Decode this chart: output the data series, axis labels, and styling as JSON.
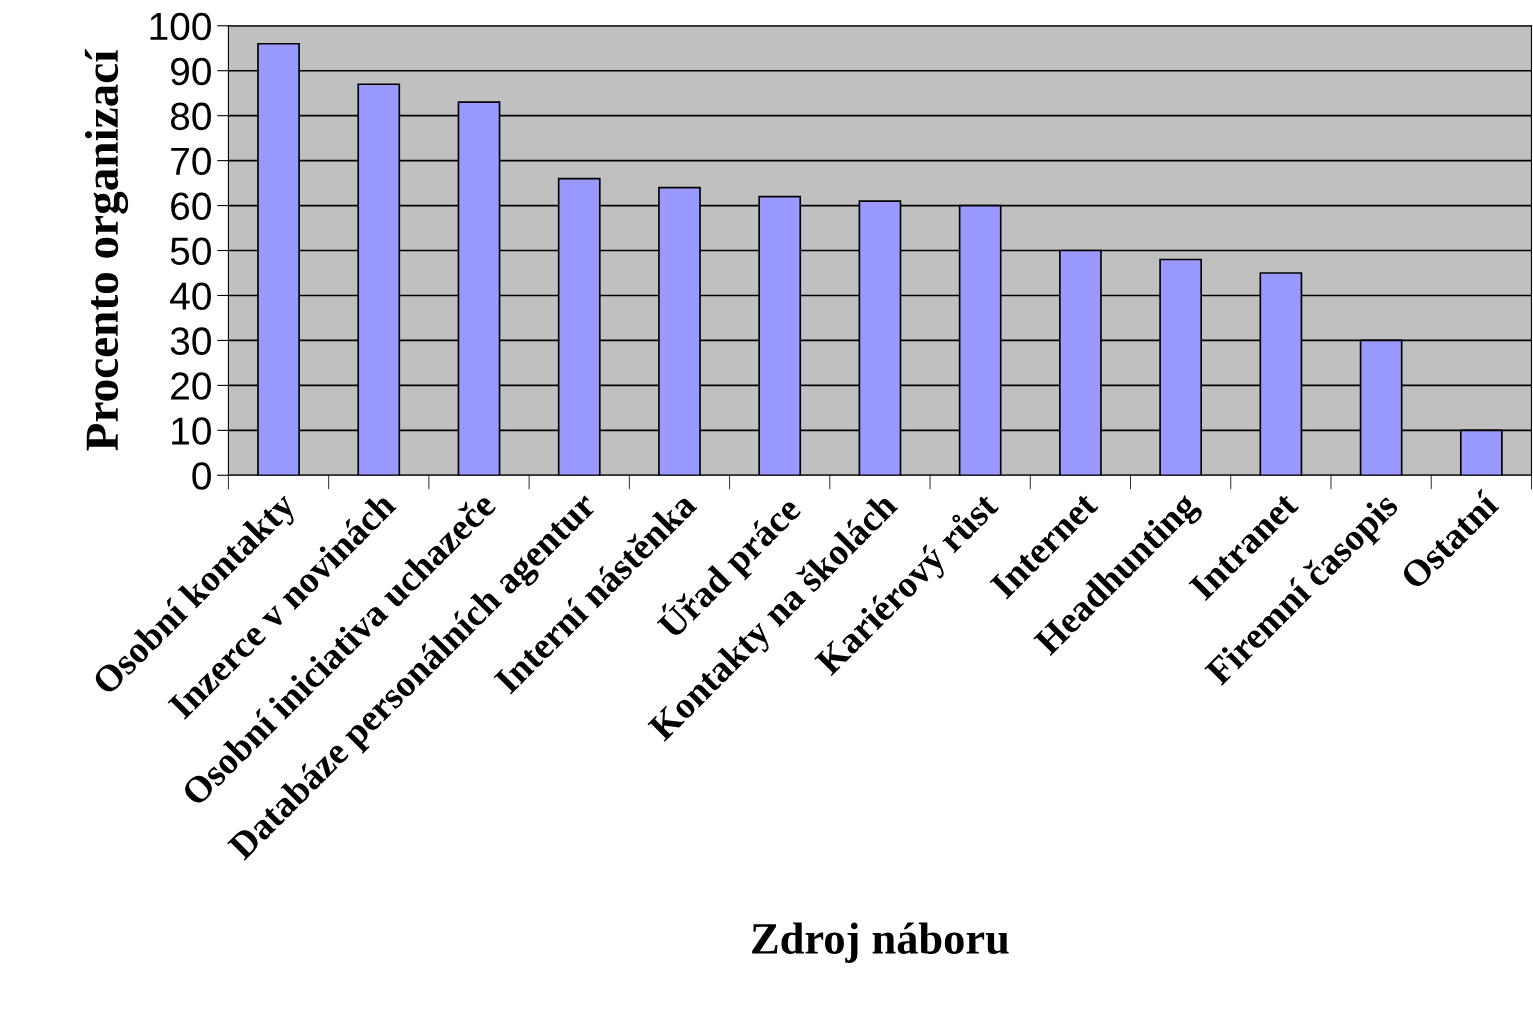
{
  "chart_data": {
    "type": "bar",
    "xlabel": "Zdroj náboru",
    "ylabel": "Procento organizací",
    "categories": [
      "Osobní kontakty",
      "Inzerce v novinách",
      "Osobní iniciativa uchazeče",
      "Databáze personálních agentur",
      "Interní nástěnka",
      "Úřad práce",
      "Kontakty na školách",
      "Kariérový růst",
      "Internet",
      "Headhunting",
      "Intranet",
      "Firemní časopis",
      "Ostatní"
    ],
    "values": [
      96,
      87,
      83,
      66,
      64,
      62,
      61,
      60,
      50,
      48,
      45,
      30,
      10
    ],
    "color": "#9999ff",
    "ylim": [
      0,
      100
    ],
    "yticks": [
      0,
      10,
      20,
      30,
      40,
      50,
      60,
      70,
      80,
      90,
      100
    ],
    "grid": "y",
    "legend": false
  }
}
